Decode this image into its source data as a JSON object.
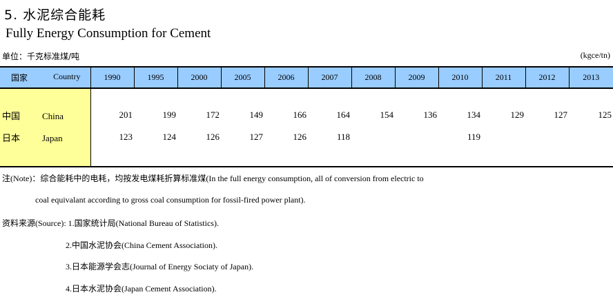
{
  "title_cn": "5.  水泥综合能耗",
  "title_en": "Fully Energy Consumption for Cement",
  "unit_cn": "单位：千克标准煤/吨",
  "unit_en": "(kgce/tn)",
  "header": {
    "label_cn": "国家",
    "label_en": "Country",
    "years": [
      "1990",
      "1995",
      "2000",
      "2005",
      "2006",
      "2007",
      "2008",
      "2009",
      "2010",
      "2011",
      "2012",
      "2013"
    ]
  },
  "rows": [
    {
      "cn": "中国",
      "en": "China",
      "values": [
        "201",
        "199",
        "172",
        "149",
        "166",
        "164",
        "154",
        "136",
        "134",
        "129",
        "127",
        "125"
      ]
    },
    {
      "cn": "日本",
      "en": "Japan",
      "values": [
        "123",
        "124",
        "126",
        "127",
        "126",
        "118",
        "",
        "",
        "119",
        "",
        "",
        ""
      ]
    }
  ],
  "notes": {
    "note_line1": "注(Note)：综合能耗中的电耗，均按发电煤耗折算标准煤(In the full energy consumption, all of conversion from electric to",
    "note_line2": "coal equivalant according to gross coal consumption for fossil-fired power plant).",
    "source_line1": "资料来源(Source): 1.国家统计局(National Bureau of Statistics).",
    "source_line2": "2.中国水泥协会(China Cement Association).",
    "source_line3": "3.日本能源学会志(Journal of Energy Sociaty of Japan).",
    "source_line4": "4.日本水泥协会(Japan Cement Association)."
  }
}
